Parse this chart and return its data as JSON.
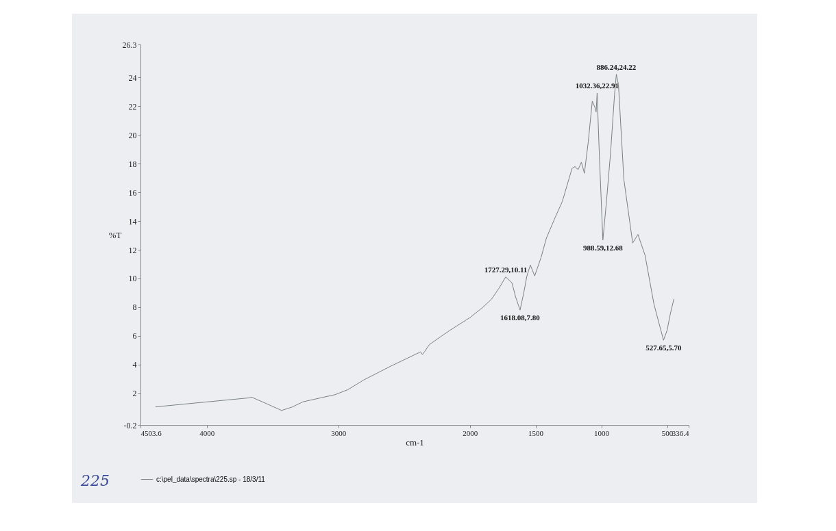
{
  "chart_data": {
    "type": "line",
    "xlabel": "cm-1",
    "ylabel": "%T",
    "xlim": [
      4503.6,
      336.4
    ],
    "xticks": [
      4503.6,
      4000,
      3000,
      2000,
      1500,
      1000,
      500,
      336.4
    ],
    "ylim": [
      -0.2,
      26.3
    ],
    "yticks": [
      -0.2,
      2,
      4,
      6,
      8,
      10,
      12,
      14,
      16,
      18,
      20,
      22,
      24,
      26.3
    ],
    "grid": false,
    "legend": "bottom left",
    "series": [
      {
        "name": "c:\\pel_data\\spectra\\225.sp - 18/3/11",
        "color": "#7a8080",
        "x": [
          4388,
          3674,
          3660,
          3550,
          3431,
          3350,
          3269,
          3024,
          2929,
          2807,
          2600,
          2374,
          2360,
          2306,
          2150,
          2000,
          1900,
          1835,
          1780,
          1727.29,
          1680,
          1652,
          1618.08,
          1590,
          1566,
          1540,
          1507,
          1459,
          1418,
          1351,
          1297,
          1223,
          1200,
          1190,
          1176,
          1152,
          1129,
          1100,
          1069,
          1048,
          1040,
          1032.36,
          1015,
          988.59,
          960,
          930,
          900,
          886.24,
          870,
          829,
          762,
          722,
          668,
          600,
          527.65,
          500,
          476,
          449
        ],
        "values": [
          1.06,
          1.69,
          1.74,
          1.3,
          0.81,
          1.05,
          1.41,
          1.91,
          2.25,
          2.93,
          3.9,
          4.89,
          4.7,
          5.41,
          6.4,
          7.27,
          8.0,
          8.56,
          9.3,
          10.11,
          9.7,
          8.72,
          7.8,
          9.0,
          10.18,
          10.94,
          10.18,
          11.45,
          12.81,
          14.26,
          15.36,
          17.67,
          17.8,
          17.67,
          17.6,
          18.1,
          17.33,
          19.5,
          22.35,
          21.9,
          21.6,
          22.91,
          18.5,
          12.68,
          15.5,
          18.77,
          22.8,
          24.22,
          23.5,
          16.9,
          12.47,
          13.07,
          11.62,
          8.2,
          5.7,
          6.4,
          7.53,
          8.56
        ]
      }
    ],
    "annotations": [
      {
        "text": "1727.29,10.11",
        "x": 1727.29,
        "y": 10.11
      },
      {
        "text": "1618.08,7.80",
        "x": 1618.08,
        "y": 7.8
      },
      {
        "text": "1032.36,22.91",
        "x": 1032.36,
        "y": 22.91
      },
      {
        "text": "988.59,12.68",
        "x": 988.59,
        "y": 12.68
      },
      {
        "text": "886.24,24.22",
        "x": 886.24,
        "y": 24.22
      },
      {
        "text": "527.65,5.70",
        "x": 527.65,
        "y": 5.7
      },
      "225"
    ]
  }
}
